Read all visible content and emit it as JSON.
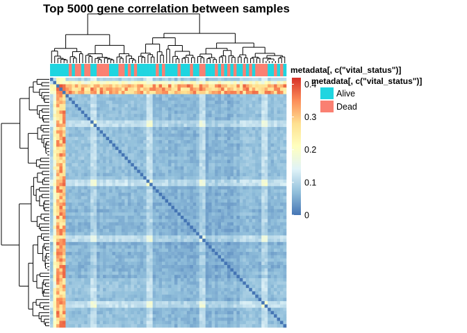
{
  "chart_data": {
    "type": "heatmap",
    "title": "Top 5000 gene correlation between samples",
    "matrix": "symmetric sample-by-sample correlation, diagonal = 0",
    "color_scale": {
      "min": 0,
      "max": 0.42,
      "ticks": [
        0,
        0.1,
        0.2,
        0.3,
        0.4
      ],
      "tick_labels": [
        "0",
        "0.1",
        "0.2",
        "0.3",
        "0.4"
      ],
      "colors": [
        "#4575b4",
        "#91bfdb",
        "#e0f3f8",
        "#ffffbf",
        "#fee090",
        "#fc8d59",
        "#d73027"
      ]
    },
    "annotation": {
      "column_label": "metadata[, c(\"vital_status\")]",
      "legend_title": "metadata[, c(\"vital_status\")]",
      "levels": [
        {
          "name": "Alive",
          "color": "#1fd5e0"
        },
        {
          "name": "Dead",
          "color": "#fa8072"
        }
      ]
    },
    "dendrograms": {
      "rows": true,
      "columns": true
    },
    "legend_placement": "right"
  }
}
